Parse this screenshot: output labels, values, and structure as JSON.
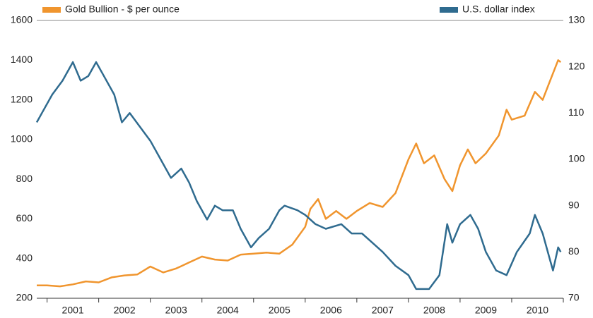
{
  "chart_data": {
    "type": "line",
    "xlim": [
      2000.8,
      2011
    ],
    "xticks": [
      {
        "value": 2001.5,
        "label": "2001"
      },
      {
        "value": 2002.5,
        "label": "2002"
      },
      {
        "value": 2003.5,
        "label": "2003"
      },
      {
        "value": 2004.5,
        "label": "2004"
      },
      {
        "value": 2005.5,
        "label": "2005"
      },
      {
        "value": 2006.5,
        "label": "2006"
      },
      {
        "value": 2007.5,
        "label": "2007"
      },
      {
        "value": 2008.5,
        "label": "2008"
      },
      {
        "value": 2009.5,
        "label": "2009"
      },
      {
        "value": 2010.5,
        "label": "2010"
      }
    ],
    "xminor_ticks": [
      2001,
      2002,
      2003,
      2004,
      2005,
      2006,
      2007,
      2008,
      2009,
      2010,
      2011
    ],
    "ylim": [
      200,
      1600
    ],
    "yticks": [
      200,
      400,
      600,
      800,
      1000,
      1200,
      1400,
      1600
    ],
    "y2lim": [
      70,
      130
    ],
    "y2ticks": [
      70,
      80,
      90,
      100,
      110,
      120,
      130
    ],
    "series": [
      {
        "name": "Gold Bullion - $ per ounce",
        "color": "#f0952e",
        "x": [
          2000.8,
          2001.0,
          2001.25,
          2001.5,
          2001.75,
          2002.0,
          2002.25,
          2002.5,
          2002.75,
          2003.0,
          2003.25,
          2003.5,
          2003.75,
          2004.0,
          2004.25,
          2004.5,
          2004.75,
          2005.0,
          2005.25,
          2005.5,
          2005.75,
          2006.0,
          2006.1,
          2006.25,
          2006.4,
          2006.6,
          2006.8,
          2007.0,
          2007.25,
          2007.5,
          2007.75,
          2008.0,
          2008.15,
          2008.3,
          2008.5,
          2008.7,
          2008.85,
          2009.0,
          2009.15,
          2009.3,
          2009.5,
          2009.75,
          2009.9,
          2010.0,
          2010.25,
          2010.45,
          2010.6,
          2010.75,
          2010.9,
          2010.95
        ],
        "values": [
          265,
          265,
          260,
          270,
          285,
          280,
          305,
          315,
          320,
          360,
          330,
          350,
          380,
          410,
          395,
          390,
          420,
          425,
          430,
          425,
          470,
          560,
          650,
          700,
          600,
          640,
          600,
          640,
          680,
          660,
          730,
          900,
          980,
          880,
          920,
          800,
          740,
          870,
          950,
          880,
          930,
          1020,
          1150,
          1100,
          1120,
          1240,
          1200,
          1300,
          1400,
          1390
        ]
      },
      {
        "name": "U.S. dollar index",
        "color": "#2f6b8f",
        "axis": "y2",
        "x": [
          2000.8,
          2000.9,
          2001.1,
          2001.3,
          2001.5,
          2001.65,
          2001.8,
          2001.95,
          2002.1,
          2002.3,
          2002.45,
          2002.6,
          2002.8,
          2003.0,
          2003.2,
          2003.4,
          2003.6,
          2003.75,
          2003.9,
          2004.1,
          2004.25,
          2004.4,
          2004.6,
          2004.75,
          2004.95,
          2005.1,
          2005.3,
          2005.5,
          2005.6,
          2005.85,
          2006.0,
          2006.2,
          2006.4,
          2006.7,
          2006.9,
          2007.1,
          2007.3,
          2007.5,
          2007.75,
          2008.0,
          2008.15,
          2008.4,
          2008.6,
          2008.75,
          2008.85,
          2009.0,
          2009.2,
          2009.35,
          2009.5,
          2009.7,
          2009.9,
          2010.1,
          2010.35,
          2010.45,
          2010.6,
          2010.75,
          2010.8,
          2010.9,
          2010.95
        ],
        "values": [
          108,
          110,
          114,
          117,
          121,
          117,
          118,
          121,
          118,
          114,
          108,
          110,
          107,
          104,
          100,
          96,
          98,
          95,
          91,
          87,
          90,
          89,
          89,
          85,
          81,
          83,
          85,
          89,
          90,
          89,
          88,
          86,
          85,
          86,
          84,
          84,
          82,
          80,
          77,
          75,
          72,
          72,
          75,
          86,
          82,
          86,
          88,
          85,
          80,
          76,
          75,
          80,
          84,
          88,
          84,
          78,
          76,
          81,
          80
        ]
      }
    ]
  }
}
